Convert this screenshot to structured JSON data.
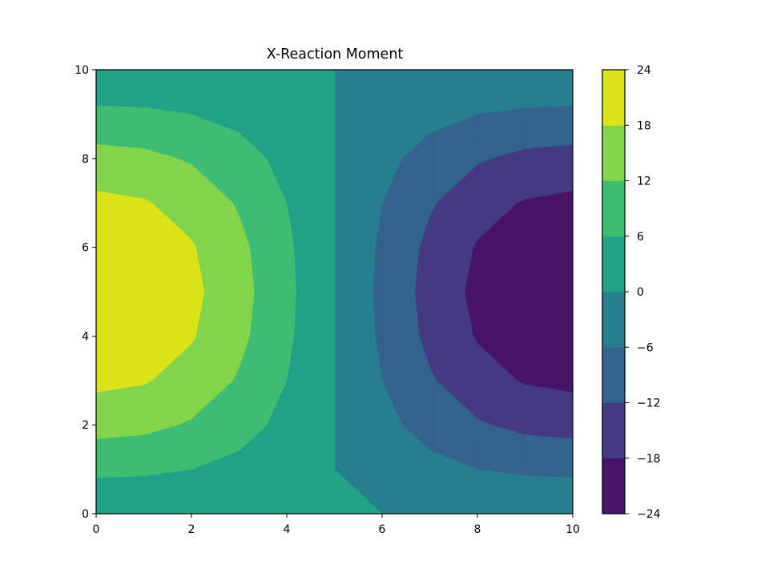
{
  "chart_data": {
    "type": "contourf",
    "title": "X-Reaction Moment",
    "xlabel": "",
    "ylabel": "",
    "xlim": [
      0,
      10
    ],
    "ylim": [
      0,
      10
    ],
    "x_ticks": [
      "0",
      "2",
      "4",
      "6",
      "8",
      "10"
    ],
    "y_ticks": [
      "0",
      "2",
      "4",
      "6",
      "8",
      "10"
    ],
    "colorbar": {
      "levels": [
        -24,
        -18,
        -12,
        -6,
        0,
        6,
        12,
        18,
        24
      ],
      "tick_labels": [
        "−24",
        "−18",
        "−12",
        "−6",
        "0",
        "6",
        "12",
        "18",
        "24"
      ],
      "colors": [
        "#481467",
        "#443983",
        "#33638d",
        "#277f8e",
        "#21a185",
        "#3fbc73",
        "#84d44b",
        "#dae319"
      ]
    },
    "field": {
      "description_function": "z = 24 * cos(pi*x/10) * sin(pi*y/10)",
      "amplitude": 24,
      "grid_n": 10
    },
    "grid": false
  }
}
